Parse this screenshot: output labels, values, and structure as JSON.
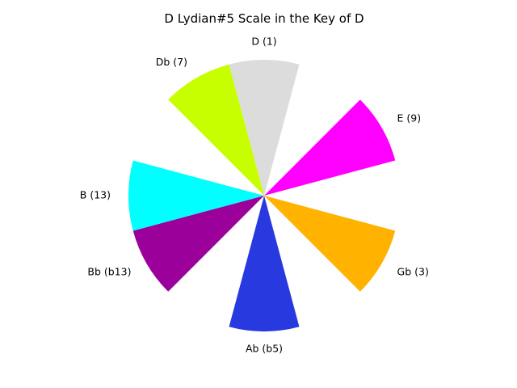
{
  "chart_data": {
    "type": "pie",
    "title": "D Lydian#5 Scale in the Key of D",
    "rotation": "clockwise from 12 o'clock",
    "segment_count": 12,
    "radius_max": 1.0,
    "slices": [
      {
        "label": "D (1)",
        "position": 0,
        "value": 1,
        "color": "#dcdcdc"
      },
      {
        "label": "E (9)",
        "position": 2,
        "value": 1,
        "color": "#ff00ff"
      },
      {
        "label": "Gb (3)",
        "position": 4,
        "value": 1,
        "color": "#ffb300"
      },
      {
        "label": "Ab (b5)",
        "position": 6,
        "value": 1,
        "color": "#283adf"
      },
      {
        "label": "Bb (b13)",
        "position": 8,
        "value": 1,
        "color": "#9b009b"
      },
      {
        "label": "B (13)",
        "position": 9,
        "value": 1,
        "color": "#00ffff"
      },
      {
        "label": "Db (7)",
        "position": 11,
        "value": 1,
        "color": "#c8ff00"
      }
    ]
  }
}
